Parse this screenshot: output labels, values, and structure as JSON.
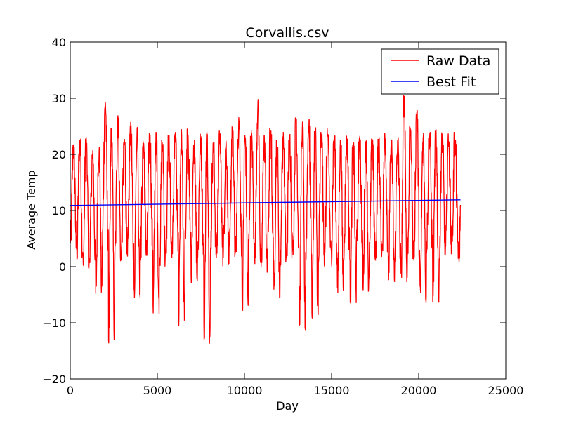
{
  "chart_data": {
    "type": "line",
    "title": "Corvallis.csv",
    "xlabel": "Day",
    "ylabel": "Average Temp",
    "xlim": [
      0,
      25000
    ],
    "ylim": [
      -20,
      40
    ],
    "xticks": [
      0,
      5000,
      10000,
      15000,
      20000,
      25000
    ],
    "yticks": [
      -20,
      -10,
      0,
      10,
      20,
      30,
      40
    ],
    "xtick_labels": [
      "0",
      "5000",
      "10000",
      "15000",
      "20000",
      "25000"
    ],
    "ytick_labels": [
      "−20",
      "−10",
      "0",
      "10",
      "20",
      "30",
      "40"
    ],
    "grid": false,
    "legend": {
      "location": "upper right",
      "entries": [
        "Raw Data",
        "Best Fit"
      ]
    },
    "series": [
      {
        "name": "Raw Data",
        "color": "#ff0000",
        "style": "line",
        "description_of_shape": "daily average temperature, seasonal oscillation",
        "x": [
          0,
          180,
          365,
          545,
          730,
          910,
          1095,
          1275,
          1460,
          1640,
          1825,
          2005,
          2190,
          2370,
          2555,
          2735,
          2920,
          3100,
          3285,
          3465,
          3650,
          3830,
          4015,
          4195,
          4380,
          4560,
          4745,
          4925,
          5110,
          5290,
          5475,
          5655,
          5840,
          6020,
          6205,
          6385,
          6570,
          6750,
          6935,
          7115,
          7300,
          7480,
          7665,
          7845,
          8030,
          8210,
          8395,
          8575,
          8760,
          8940,
          9125,
          9305,
          9490,
          9670,
          9855,
          10035,
          10220,
          10400,
          10585,
          10765,
          10950,
          11130,
          11315,
          11495,
          11680,
          11860,
          12045,
          12225,
          12410,
          12590,
          12775,
          12955,
          13140,
          13320,
          13505,
          13685,
          13870,
          14050,
          14235,
          14415,
          14600,
          14780,
          14965,
          15145,
          15330,
          15510,
          15695,
          15875,
          16060,
          16240,
          16425,
          16605,
          16790,
          16970,
          17155,
          17335,
          17520,
          17700,
          17885,
          18065,
          18250,
          18430,
          18615,
          18795,
          18980,
          19160,
          19345,
          19525,
          19710,
          19890,
          20075,
          20255,
          20440,
          20620,
          20805,
          20985,
          21170,
          21350,
          21535,
          21715,
          21900,
          22080,
          22265,
          22400
        ],
        "y": [
          3,
          22,
          1,
          23,
          -1,
          24,
          0,
          21,
          -5,
          22,
          2,
          30,
          -14,
          25,
          0,
          27,
          2,
          23,
          1,
          26,
          -6,
          25,
          1,
          23,
          2,
          24,
          -9,
          25,
          0,
          23,
          1,
          24,
          2,
          24,
          -11,
          25,
          2,
          25,
          -3,
          23,
          1,
          24,
          -14,
          25,
          1,
          23,
          2,
          25,
          0,
          23,
          1,
          25,
          1,
          27,
          -8,
          24,
          2,
          25,
          0,
          30,
          -2,
          24,
          1,
          25,
          -6,
          23,
          0,
          24,
          1,
          24,
          2,
          27,
          -12,
          26,
          1,
          27,
          -10,
          25,
          0,
          24,
          2,
          25,
          0,
          24,
          -5,
          23,
          1,
          24,
          -7,
          23,
          2,
          24,
          -5,
          23,
          0,
          23,
          1,
          24,
          2,
          24,
          -3,
          23,
          0,
          24,
          -3,
          31,
          1,
          25,
          0,
          28,
          -7,
          24,
          2,
          24,
          -7,
          25,
          1,
          24,
          2,
          24,
          3,
          24,
          0,
          11
        ],
        "oscillation_period_days": 365,
        "typical_min": -3,
        "typical_max": 24,
        "annotated_extremes": {
          "max": 30.5,
          "min": -14.5
        }
      },
      {
        "name": "Best Fit",
        "color": "#0000ff",
        "style": "line",
        "x": [
          0,
          22400
        ],
        "y": [
          10.9,
          11.9
        ]
      }
    ]
  }
}
